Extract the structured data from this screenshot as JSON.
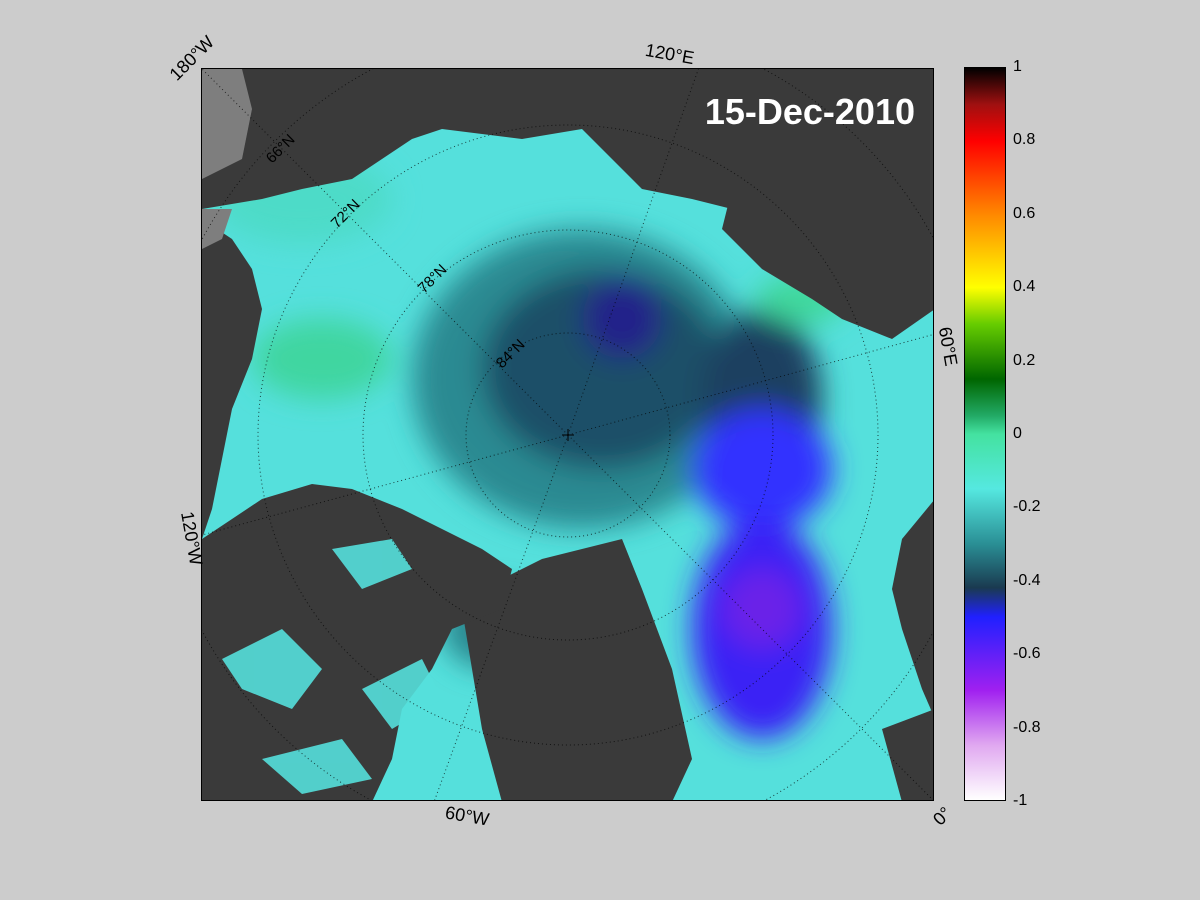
{
  "map": {
    "date": "15-Dec-2010",
    "longitude_labels": [
      "180°W",
      "120°E",
      "60°E",
      "0°",
      "60°W",
      "120°W"
    ],
    "latitude_labels": [
      "66°N",
      "72°N",
      "78°N",
      "84°N"
    ],
    "colors": {
      "land": "#3a3a3a",
      "land_unmasked": "#7e7e7e",
      "background": "#cccccc"
    }
  },
  "colorbar": {
    "range": [
      -1,
      1
    ],
    "ticks": [
      "1",
      "0.8",
      "0.6",
      "0.4",
      "0.2",
      "0",
      "-0.2",
      "-0.4",
      "-0.6",
      "-0.8",
      "-1"
    ],
    "tick_values": [
      1,
      0.8,
      0.6,
      0.4,
      0.2,
      0,
      -0.2,
      -0.4,
      -0.6,
      -0.8,
      -1
    ],
    "stops": [
      {
        "value": 1,
        "color": "#000000"
      },
      {
        "value": 0.9,
        "color": "#a01010"
      },
      {
        "value": 0.8,
        "color": "#ff0000"
      },
      {
        "value": 0.6,
        "color": "#ff8800"
      },
      {
        "value": 0.4,
        "color": "#ffff00"
      },
      {
        "value": 0.3,
        "color": "#66cc00"
      },
      {
        "value": 0.15,
        "color": "#006600"
      },
      {
        "value": 0.05,
        "color": "#22aa66"
      },
      {
        "value": 0,
        "color": "#44e2a0"
      },
      {
        "value": -0.15,
        "color": "#55e8e0"
      },
      {
        "value": -0.3,
        "color": "#2a8f95"
      },
      {
        "value": -0.42,
        "color": "#1a3a50"
      },
      {
        "value": -0.5,
        "color": "#2020ff"
      },
      {
        "value": -0.7,
        "color": "#a020f0"
      },
      {
        "value": -0.85,
        "color": "#e0a8f0"
      },
      {
        "value": -1,
        "color": "#ffffff"
      }
    ]
  }
}
